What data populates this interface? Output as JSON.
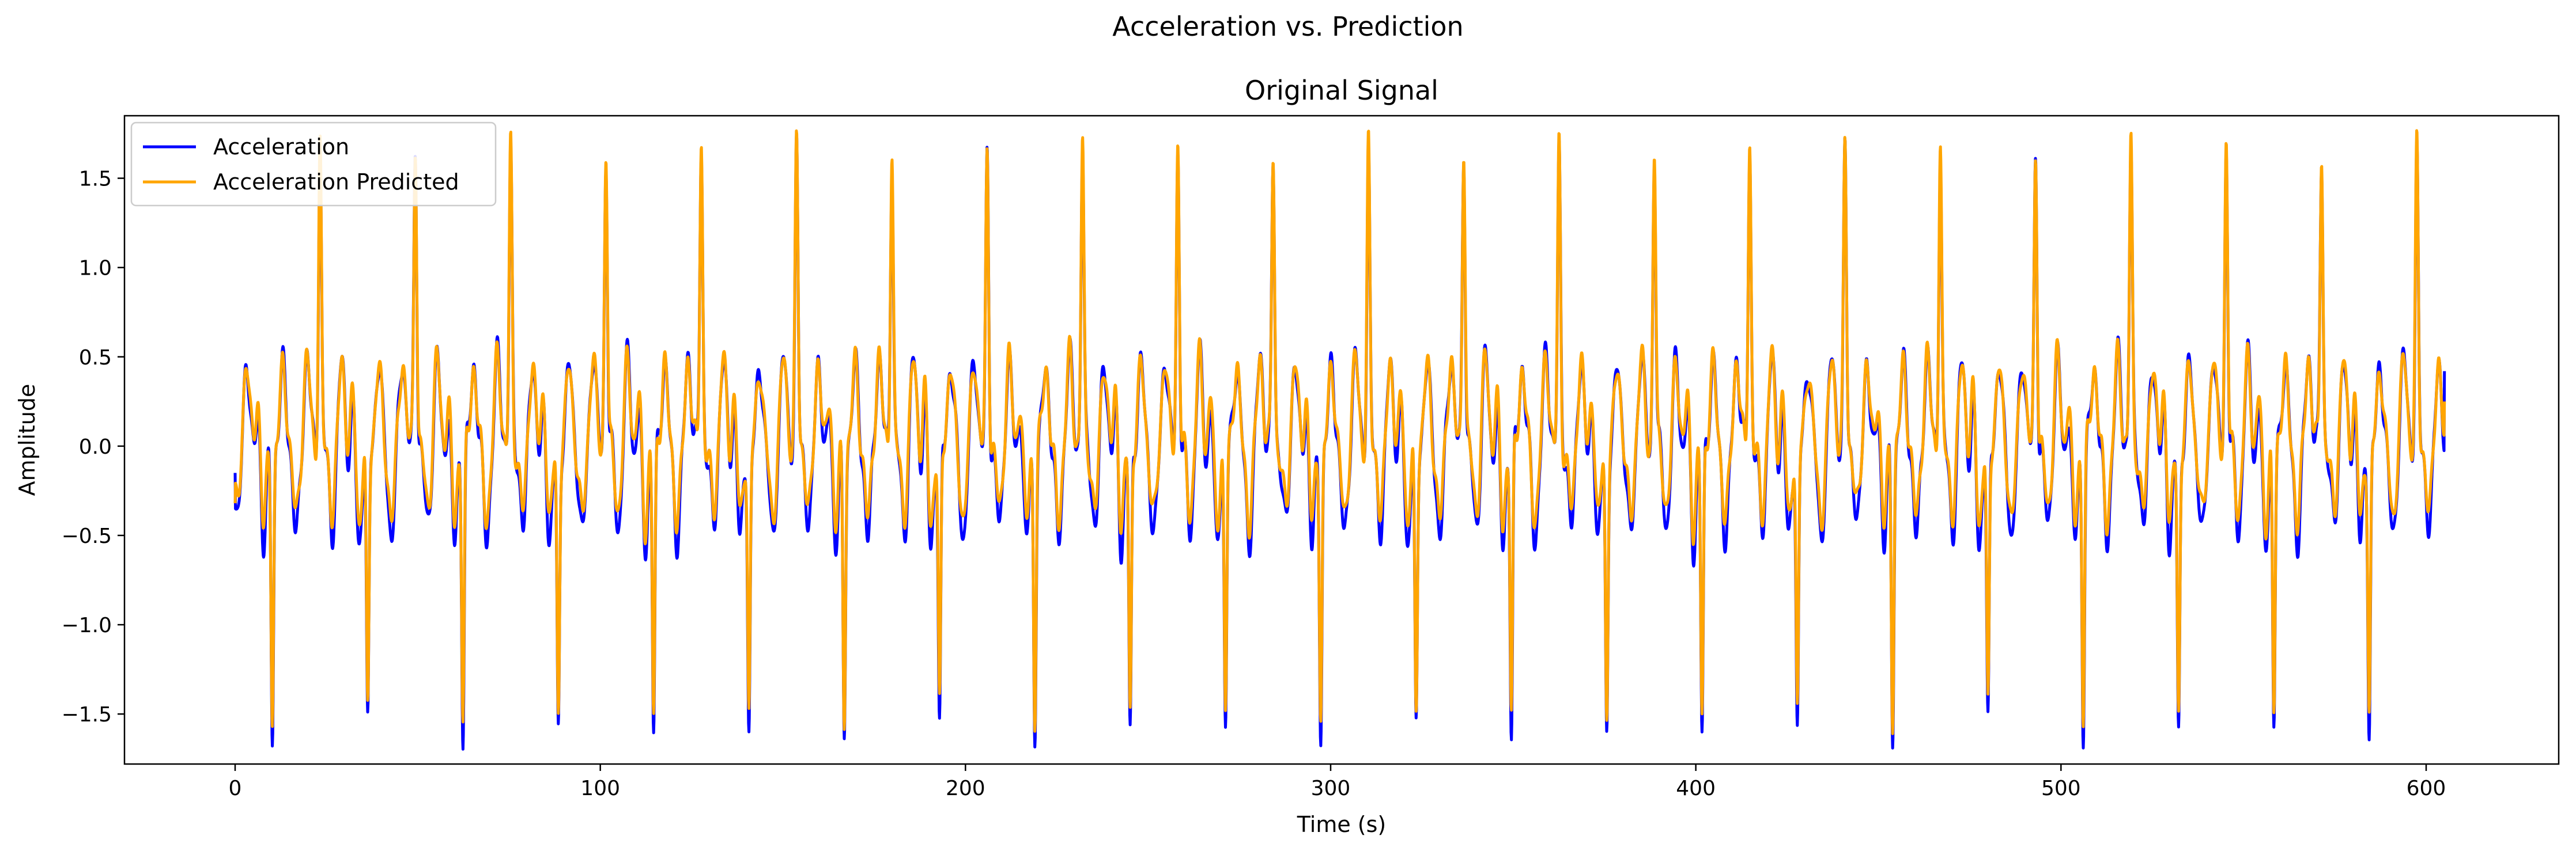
{
  "figure": {
    "suptitle": "Acceleration vs. Prediction"
  },
  "chart_data": {
    "type": "line",
    "title": "Original Signal",
    "xlabel": "Time (s)",
    "ylabel": "Amplitude",
    "xlim": [
      -30.3,
      636.3
    ],
    "ylim": [
      -1.78,
      1.85
    ],
    "x_ticks": [
      0,
      100,
      200,
      300,
      400,
      500,
      600
    ],
    "x_tick_labels": [
      "0",
      "100",
      "200",
      "300",
      "400",
      "500",
      "600"
    ],
    "y_ticks": [
      -1.5,
      -1.0,
      -0.5,
      0.0,
      0.5,
      1.0,
      1.5
    ],
    "y_tick_labels": [
      "−1.5",
      "−1.0",
      "−0.5",
      "0.0",
      "0.5",
      "1.0",
      "1.5"
    ],
    "grid": false,
    "legend_position": "upper-left",
    "x_range": [
      0,
      605
    ],
    "cycle_period_s": 26.1,
    "first_peak_x": 10.2,
    "series": [
      {
        "name": "Acceleration",
        "color": "#0000ff",
        "negative_peak": -1.6,
        "positive_peak": 1.63,
        "trough_range": [
          -0.7,
          -0.45
        ],
        "start_value": -0.15,
        "end_value": 0.42
      },
      {
        "name": "Acceleration Predicted",
        "color": "#ffa500",
        "negative_peak": -1.5,
        "positive_peak": 1.68,
        "trough_range": [
          -0.55,
          -0.35
        ],
        "start_value": -0.32,
        "end_value": 0.25
      }
    ]
  }
}
